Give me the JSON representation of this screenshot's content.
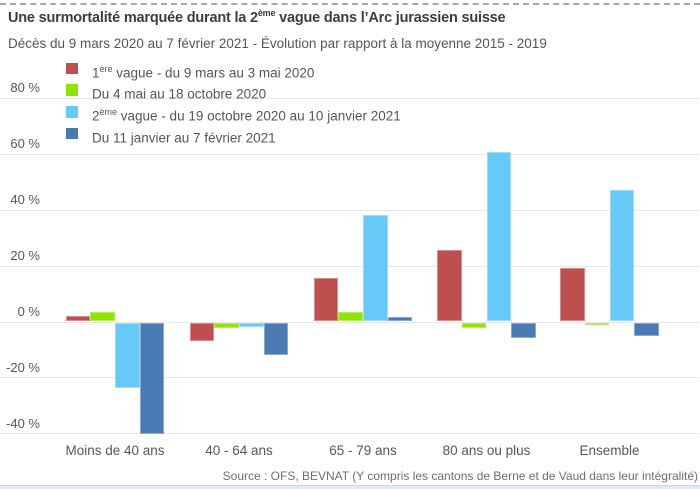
{
  "title": {
    "pre": "Une surmortalité marquée durant la 2",
    "sup": "ème",
    "post": " vague dans l’Arc jurassien suisse"
  },
  "subtitle": "Décès du 9 mars 2020 au 7 février 2021 - Évolution par rapport à la moyenne 2015 - 2019",
  "source": "Source : OFS, BEVNAT (Y compris les cantons de Berne et de Vaud dans leur intégralité)",
  "colors": {
    "wave1_red": "#bf4f4f",
    "interwave_green": "#8ee500",
    "wave2_lightblue": "#66c9f7",
    "post_wave_darkblue": "#4a7ab4",
    "gridline": "#e7e7e7",
    "title_text": "#3d3d3d",
    "body_text": "#565656",
    "bottom_strip": "#e0eaf6"
  },
  "chart_data": {
    "type": "bar",
    "categories": [
      "Moins de 40 ans",
      "40 - 64 ans",
      "65 - 79 ans",
      "80 ans ou plus",
      "Ensemble"
    ],
    "series": [
      {
        "name_pre": "1",
        "name_sup": "ère",
        "name_post": " vague - du 9 mars au 3 mai 2020",
        "color": "#bf4f4f",
        "values": [
          2,
          -6.5,
          15.5,
          25.5,
          19
        ]
      },
      {
        "name_pre": "",
        "name_sup": "",
        "name_post": "Du 4 mai au 18 octobre 2020",
        "color": "#8ee500",
        "values": [
          3.5,
          -2,
          3.5,
          -2,
          -1
        ]
      },
      {
        "name_pre": "2",
        "name_sup": "ème",
        "name_post": " vague - du 19 octobre 2020 au 10 janvier 2021",
        "color": "#66c9f7",
        "values": [
          -23.5,
          -1.5,
          38,
          60.5,
          47
        ]
      },
      {
        "name_pre": "",
        "name_sup": "",
        "name_post": "Du 11 janvier au 7 février 2021",
        "color": "#4a7ab4",
        "values": [
          -40,
          -11.5,
          1.5,
          -5.5,
          -5
        ]
      }
    ],
    "y_ticks": [
      {
        "value": 80,
        "label": "80 %"
      },
      {
        "value": 60,
        "label": "60 %"
      },
      {
        "value": 40,
        "label": "40 %"
      },
      {
        "value": 20,
        "label": "20 %"
      },
      {
        "value": 0,
        "label": "0 %"
      },
      {
        "value": -20,
        "label": "-20 %"
      },
      {
        "value": -40,
        "label": "-40 %"
      }
    ],
    "ylim": [
      -45,
      85
    ],
    "xlabel": "",
    "ylabel": "",
    "grid": true,
    "legend_position": "top-left"
  }
}
